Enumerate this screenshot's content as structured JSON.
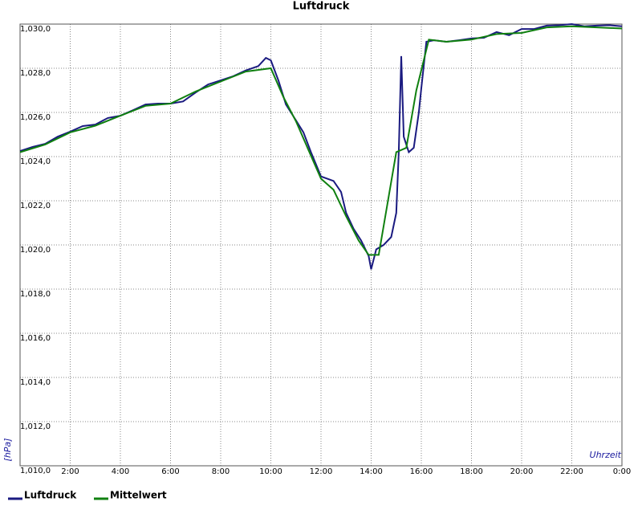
{
  "chart_data": {
    "type": "line",
    "title": "Luftdruck",
    "x_label": "Uhrzeit",
    "y_label": "[hPa]",
    "xlim": [
      0,
      24
    ],
    "ylim": [
      1010,
      1030
    ],
    "grid": true,
    "legend": "bottom-left",
    "xticks": [
      {
        "value": 2,
        "label": "2:00"
      },
      {
        "value": 4,
        "label": "4:00"
      },
      {
        "value": 6,
        "label": "6:00"
      },
      {
        "value": 8,
        "label": "8:00"
      },
      {
        "value": 10,
        "label": "10:00"
      },
      {
        "value": 12,
        "label": "12:00"
      },
      {
        "value": 14,
        "label": "14:00"
      },
      {
        "value": 16,
        "label": "16:00"
      },
      {
        "value": 18,
        "label": "18:00"
      },
      {
        "value": 20,
        "label": "20:00"
      },
      {
        "value": 22,
        "label": "22:00"
      },
      {
        "value": 24,
        "label": "0:00"
      }
    ],
    "yticks": [
      {
        "value": 1010,
        "label": "1,010,0"
      },
      {
        "value": 1012,
        "label": "1,012,0"
      },
      {
        "value": 1014,
        "label": "1,014,0"
      },
      {
        "value": 1016,
        "label": "1,016,0"
      },
      {
        "value": 1018,
        "label": "1,018,0"
      },
      {
        "value": 1020,
        "label": "1,020,0"
      },
      {
        "value": 1022,
        "label": "1,022,0"
      },
      {
        "value": 1024,
        "label": "1,024,0"
      },
      {
        "value": 1026,
        "label": "1,026,0"
      },
      {
        "value": 1028,
        "label": "1,028,0"
      },
      {
        "value": 1030,
        "label": "1,030,0"
      }
    ],
    "series": [
      {
        "name": "Luftdruck",
        "color": "#1a1a80",
        "x": [
          0,
          0.5,
          1,
          1.5,
          2,
          2.5,
          3,
          3.5,
          4,
          4.5,
          5,
          5.5,
          6,
          6.5,
          7,
          7.5,
          8,
          8.5,
          9,
          9.5,
          9.8,
          10,
          10.3,
          10.6,
          11,
          11.3,
          11.6,
          12,
          12.5,
          12.8,
          13,
          13.3,
          13.6,
          13.9,
          14,
          14.2,
          14.5,
          14.8,
          15,
          15.1,
          15.2,
          15.3,
          15.5,
          15.7,
          15.9,
          16,
          16.2,
          16.5,
          17,
          17.5,
          18,
          18.5,
          19,
          19.5,
          20,
          20.5,
          21,
          21.5,
          22,
          22.5,
          23,
          23.5,
          24
        ],
        "values": [
          1024.25,
          1024.44,
          1024.58,
          1024.9,
          1025.13,
          1025.38,
          1025.45,
          1025.75,
          1025.85,
          1026.1,
          1026.36,
          1026.4,
          1026.4,
          1026.5,
          1026.9,
          1027.27,
          1027.45,
          1027.64,
          1027.9,
          1028.1,
          1028.47,
          1028.36,
          1027.45,
          1026.36,
          1025.64,
          1025.1,
          1024.2,
          1023.1,
          1022.9,
          1022.4,
          1021.45,
          1020.73,
          1020.2,
          1019.5,
          1018.9,
          1019.8,
          1020.0,
          1020.36,
          1021.45,
          1024.2,
          1028.55,
          1024.9,
          1024.2,
          1024.4,
          1026.0,
          1027.1,
          1029.2,
          1029.27,
          1029.2,
          1029.27,
          1029.35,
          1029.38,
          1029.64,
          1029.5,
          1029.78,
          1029.78,
          1029.93,
          1029.95,
          1030.0,
          1029.9,
          1029.93,
          1029.95,
          1029.9
        ]
      },
      {
        "name": "Mittelwert",
        "color": "#108010",
        "x": [
          0,
          1,
          2,
          3,
          4,
          5,
          6,
          7,
          8,
          9,
          10,
          10.5,
          11,
          11.5,
          12,
          12.5,
          13,
          13.5,
          13.9,
          14.3,
          15.0,
          15.4,
          15.8,
          16.3,
          17,
          18,
          19,
          20,
          21,
          22,
          23,
          24
        ],
        "values": [
          1024.2,
          1024.55,
          1025.1,
          1025.4,
          1025.85,
          1026.3,
          1026.4,
          1026.95,
          1027.4,
          1027.85,
          1028.0,
          1026.7,
          1025.6,
          1024.3,
          1023.0,
          1022.5,
          1021.3,
          1020.2,
          1019.55,
          1019.55,
          1024.2,
          1024.4,
          1027.0,
          1029.3,
          1029.2,
          1029.3,
          1029.55,
          1029.6,
          1029.85,
          1029.9,
          1029.85,
          1029.8
        ]
      }
    ]
  }
}
